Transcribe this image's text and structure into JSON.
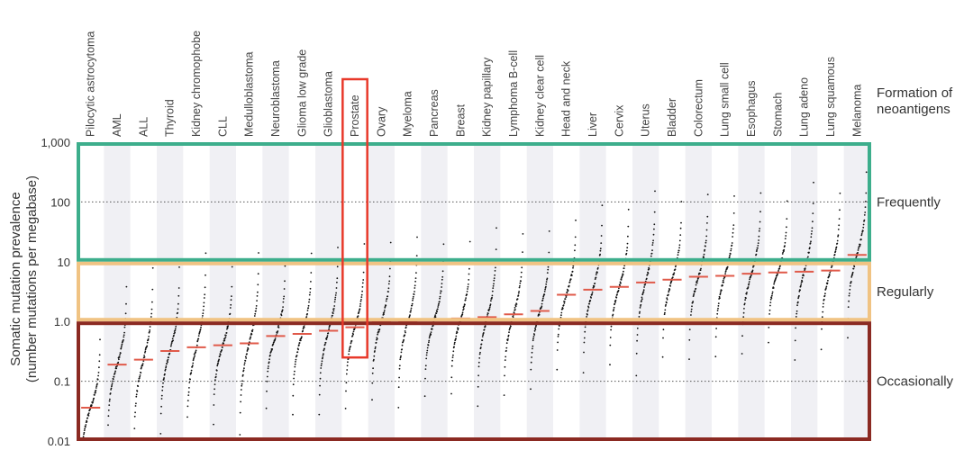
{
  "chart_data": {
    "type": "scatter",
    "title": "",
    "ylabel_line1": "Somatic mutation prevalence",
    "ylabel_line2": "(number mutations per megabase)",
    "yscale": "log",
    "ylim": [
      0.01,
      1000
    ],
    "yticks": [
      "1,000",
      "100",
      "10",
      "1.0",
      "0.1",
      "0.01"
    ],
    "ytick_values": [
      1000,
      100,
      10,
      1,
      0.1,
      0.01
    ],
    "gridlines_dotted": [
      100,
      0.1
    ],
    "categories": [
      "Pilocytic astrocytoma",
      "AML",
      "ALL",
      "Thyroid",
      "Kidney chromophobe",
      "CLL",
      "Medulloblastoma",
      "Neuroblastoma",
      "Glioma low grade",
      "Glioblastoma",
      "Prostate",
      "Ovary",
      "Myeloma",
      "Pancreas",
      "Breast",
      "Kidney papillary",
      "Lymphoma B-cell",
      "Kidney clear cell",
      "Head and neck",
      "Liver",
      "Cervix",
      "Uterus",
      "Bladder",
      "Colorectum",
      "Lung small cell",
      "Esophagus",
      "Stomach",
      "Lung adeno",
      "Lung squamous",
      "Melanoma"
    ],
    "medians": [
      0.036,
      0.19,
      0.23,
      0.32,
      0.37,
      0.4,
      0.43,
      0.57,
      0.62,
      0.7,
      0.8,
      1.0,
      1.0,
      1.05,
      1.12,
      1.18,
      1.32,
      1.5,
      2.8,
      3.4,
      3.8,
      4.5,
      5.0,
      5.6,
      5.8,
      6.3,
      6.6,
      6.8,
      7.1,
      13.0
    ],
    "highlighted_category": "Prostate",
    "colors": {
      "frequently": "#3dae8c",
      "regularly": "#f0c383",
      "occasionally": "#8b2a22",
      "highlight": "#e8392a",
      "median": "#e05a4a",
      "points": "#111111",
      "stripe": "#f0f0f4"
    },
    "zones": [
      {
        "label": "Frequently",
        "range": [
          10,
          1000
        ],
        "color": "#3dae8c"
      },
      {
        "label": "Regularly",
        "range": [
          1,
          10
        ],
        "color": "#f0c383"
      },
      {
        "label": "Occasionally",
        "range": [
          0.01,
          1
        ],
        "color": "#8b2a22"
      }
    ]
  },
  "header": {
    "line1": "Formation of",
    "line2": "neoantigens"
  }
}
